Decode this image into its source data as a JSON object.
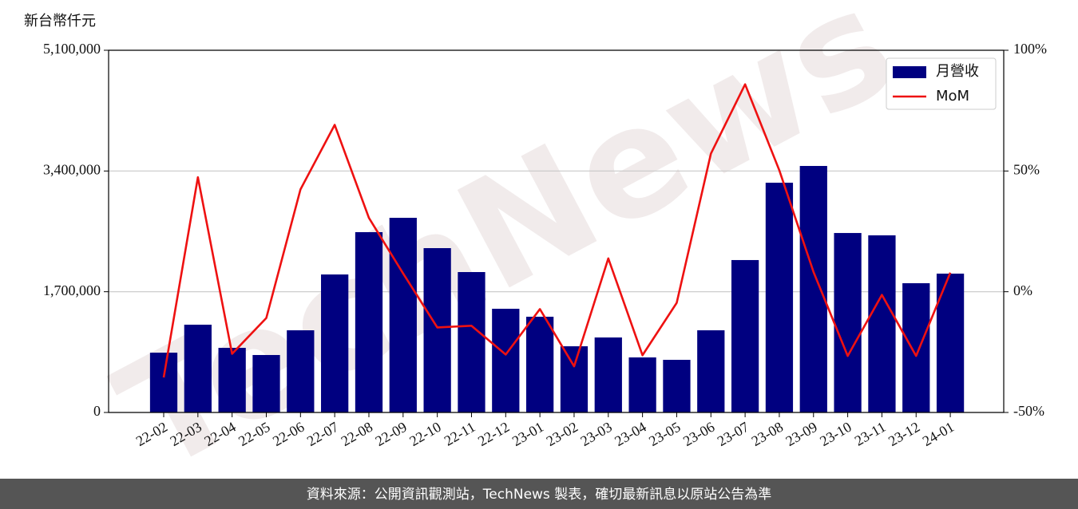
{
  "chart_data": {
    "type": "bar",
    "y_label": "新台幣仟元",
    "watermark": "TechNews",
    "footer": "資料來源：公開資訊觀測站，TechNews 製表，確切最新訊息以原站公告為準",
    "categories": [
      "22-02",
      "22-03",
      "22-04",
      "22-05",
      "22-06",
      "22-07",
      "22-08",
      "22-09",
      "22-10",
      "22-11",
      "22-12",
      "23-01",
      "23-02",
      "23-03",
      "23-04",
      "23-05",
      "23-06",
      "23-07",
      "23-08",
      "23-09",
      "23-10",
      "23-11",
      "23-12",
      "24-01"
    ],
    "series": [
      {
        "name": "月營收",
        "type": "bar",
        "color": "#000080",
        "axis": "y",
        "values": [
          842000,
          1236000,
          910000,
          809000,
          1157000,
          1943000,
          2539000,
          2741000,
          2314000,
          1977000,
          1460000,
          1348000,
          932000,
          1056000,
          775000,
          741000,
          1157000,
          2146000,
          3235000,
          3471000,
          2527000,
          2494000,
          1820000,
          1955000
        ]
      },
      {
        "name": "MoM",
        "type": "line",
        "color": "#ee1111",
        "axis": "y2",
        "values": [
          -35.5,
          47.4,
          -25.7,
          -10.9,
          42.4,
          69.1,
          30.6,
          7.6,
          -14.8,
          -14.1,
          -26,
          -7.2,
          -30.9,
          13.8,
          -26.3,
          -4.6,
          57.2,
          85.9,
          50.3,
          8.2,
          -26.6,
          -1.3,
          -26.6,
          7.9
        ]
      }
    ],
    "ylim": [
      0,
      5100000
    ],
    "yticks": [
      0,
      {
        "value": 1700000,
        "label": "1,700,000"
      },
      {
        "value": 3400000,
        "label": "3,400,000"
      },
      {
        "value": 5100000,
        "label": "5,100,000"
      }
    ],
    "y2lim": [
      -50,
      100
    ],
    "y2ticks": [
      {
        "value": -50,
        "label": "-50%"
      },
      {
        "value": 0,
        "label": "0%"
      },
      {
        "value": 50,
        "label": "50%"
      },
      {
        "value": 100,
        "label": "100%"
      }
    ],
    "grid": true,
    "legend": "upper right"
  }
}
